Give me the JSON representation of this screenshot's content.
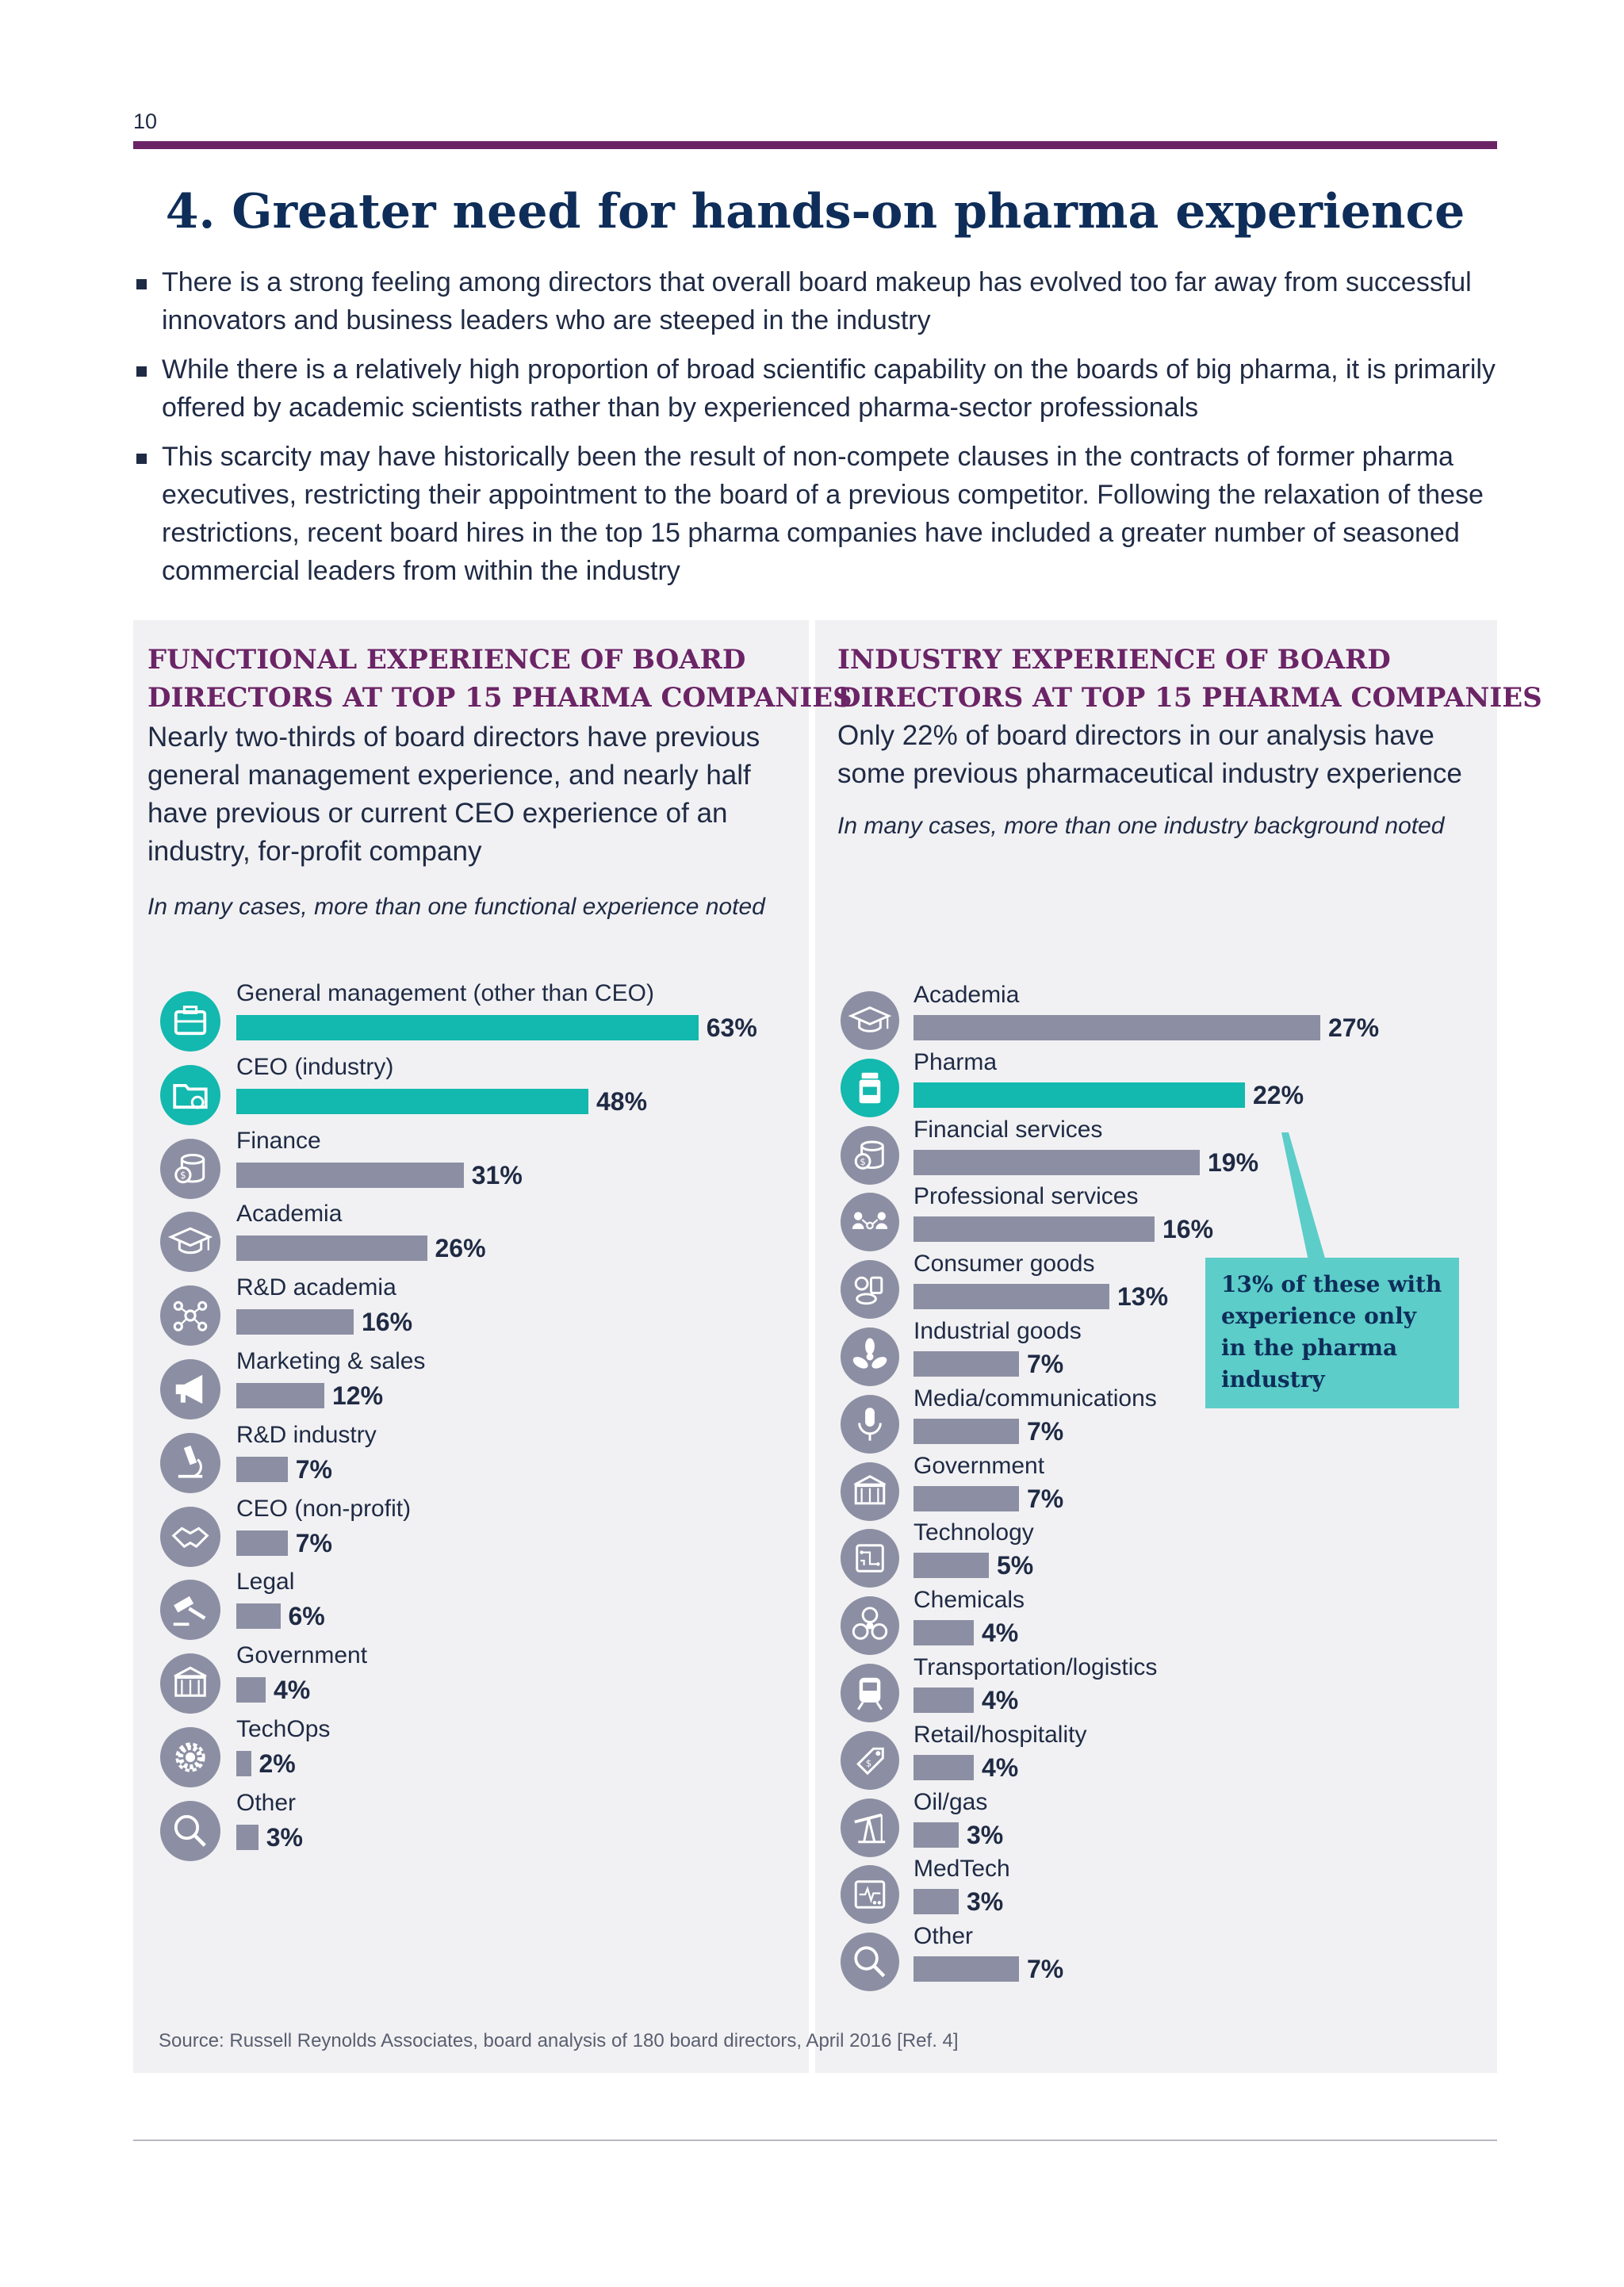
{
  "page_number": "10",
  "title": "4. Greater need for hands-on pharma experience",
  "bullets": [
    "There is a strong feeling among directors that overall board makeup has evolved too far away from successful innovators and business leaders who are steeped in the industry",
    "While there is a relatively high proportion of broad scientific capability on the boards of big pharma, it is primarily offered by academic scientists rather than by experienced pharma-sector professionals",
    "This scarcity may have historically been the result of non-compete clauses in the contracts of former pharma executives, restricting their appointment to the board of a previous competitor. Following the relaxation of these restrictions, recent board hires in the top 15 pharma companies have included a greater number of seasoned commercial leaders from within the industry"
  ],
  "functional": {
    "title_line1": "FUNCTIONAL EXPERIENCE OF BOARD",
    "title_line2": "DIRECTORS AT TOP 15 PHARMA COMPANIES",
    "desc": [
      "Nearly two-thirds of board directors have previous",
      "general management experience, and nearly half",
      "have previous or current CEO experience of an",
      "industry, for-profit company"
    ],
    "note": "In many cases, more than one functional experience noted"
  },
  "industry": {
    "title_line1": "INDUSTRY EXPERIENCE OF BOARD",
    "title_line2": "DIRECTORS AT TOP 15 PHARMA COMPANIES",
    "desc": [
      "Only 22% of board directors in our analysis have",
      "some previous pharmaceutical industry experience"
    ],
    "note": "In many cases, more than one industry background noted"
  },
  "callout": {
    "lines": [
      "13% of these with",
      "experience only",
      "in the pharma",
      "industry"
    ]
  },
  "source": "Source: Russell Reynolds Associates, board analysis of 180 board directors, April 2016 [Ref. 4]",
  "colors": {
    "highlight": "#13b8ae",
    "bar": "#8c8fa3",
    "purple": "#6b2466",
    "navy": "#0e2d59",
    "callout": "#5ccdc9"
  },
  "chart_data": [
    {
      "type": "bar",
      "orientation": "horizontal",
      "categories": [
        "General management (other than CEO)",
        "CEO (industry)",
        "Finance",
        "Academia",
        "R&D academia",
        "Marketing & sales",
        "R&D industry",
        "CEO (non-profit)",
        "Legal",
        "Government",
        "TechOps",
        "Other"
      ],
      "values": [
        63,
        48,
        31,
        26,
        16,
        12,
        7,
        7,
        6,
        4,
        2,
        3
      ],
      "labels": [
        "63%",
        "48%",
        "31%",
        "26%",
        "16%",
        "12%",
        "7%",
        "7%",
        "6%",
        "4%",
        "2%",
        "3%"
      ],
      "highlight": [
        true,
        true,
        false,
        false,
        false,
        false,
        false,
        false,
        false,
        false,
        false,
        false
      ],
      "icons": [
        "briefcase-icon",
        "folder-gear-icon",
        "coins-icon",
        "graduation-cap-icon",
        "molecule-icon",
        "megaphone-icon",
        "microscope-icon",
        "handshake-icon",
        "gavel-icon",
        "government-building-icon",
        "gear-icon",
        "magnifier-icon"
      ]
    },
    {
      "type": "bar",
      "orientation": "horizontal",
      "categories": [
        "Academia",
        "Pharma",
        "Financial services",
        "Professional services",
        "Consumer goods",
        "Industrial goods",
        "Media/communications",
        "Government",
        "Technology",
        "Chemicals",
        "Transportation/logistics",
        "Retail/hospitality",
        "Oil/gas",
        "MedTech",
        "Other"
      ],
      "values": [
        27,
        22,
        19,
        16,
        13,
        7,
        7,
        7,
        5,
        4,
        4,
        4,
        3,
        3,
        7
      ],
      "labels": [
        "27%",
        "22%",
        "19%",
        "16%",
        "13%",
        "7%",
        "7%",
        "7%",
        "5%",
        "4%",
        "4%",
        "4%",
        "3%",
        "3%",
        "7%"
      ],
      "highlight": [
        false,
        true,
        false,
        false,
        false,
        false,
        false,
        false,
        false,
        false,
        false,
        false,
        false,
        false,
        false
      ],
      "icons": [
        "graduation-cap-icon",
        "pill-bottle-icon",
        "coins-icon",
        "people-network-icon",
        "consumer-goods-icon",
        "fan-icon",
        "microphone-icon",
        "government-building-icon",
        "circuit-icon",
        "biohazard-icon",
        "train-icon",
        "price-tag-icon",
        "oil-pump-icon",
        "monitor-icon",
        "magnifier-icon"
      ]
    }
  ]
}
